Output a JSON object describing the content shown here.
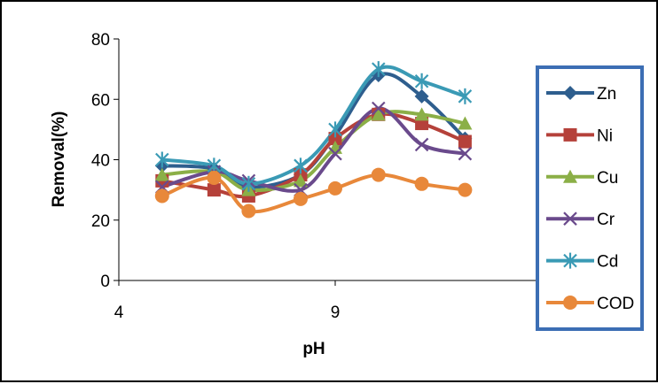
{
  "chart_data": {
    "type": "line",
    "smooth": true,
    "title": "",
    "xlabel": "pH",
    "ylabel": "Removal(%)",
    "xlim": [
      4,
      14
    ],
    "ylim": [
      0,
      80
    ],
    "xticks": [
      4,
      9
    ],
    "yticks": [
      0,
      20,
      40,
      60,
      80
    ],
    "grid": false,
    "legend_position": "right",
    "x": [
      5,
      6.2,
      7,
      8.2,
      9,
      10,
      11,
      12
    ],
    "series": [
      {
        "name": "Zn",
        "color": "#2E5E8E",
        "marker": "diamond",
        "values": [
          38,
          37,
          31,
          35,
          48,
          68,
          61,
          47
        ]
      },
      {
        "name": "Ni",
        "color": "#B5413A",
        "marker": "square",
        "values": [
          33,
          30,
          28,
          35,
          47,
          55,
          52,
          46
        ]
      },
      {
        "name": "Cu",
        "color": "#8BAF47",
        "marker": "triangle",
        "values": [
          35,
          36,
          30,
          33,
          44,
          55,
          55,
          52
        ]
      },
      {
        "name": "Cr",
        "color": "#6A4A8C",
        "marker": "x",
        "values": [
          31,
          36,
          33,
          30,
          42,
          57,
          45,
          42
        ]
      },
      {
        "name": "Cd",
        "color": "#3A9AB5",
        "marker": "asterisk",
        "values": [
          40,
          38,
          32,
          38,
          50,
          70,
          66,
          61
        ]
      },
      {
        "name": "COD",
        "color": "#E8883A",
        "marker": "circle",
        "values": [
          28,
          34,
          23,
          27,
          30.5,
          35,
          32,
          30
        ]
      }
    ]
  }
}
